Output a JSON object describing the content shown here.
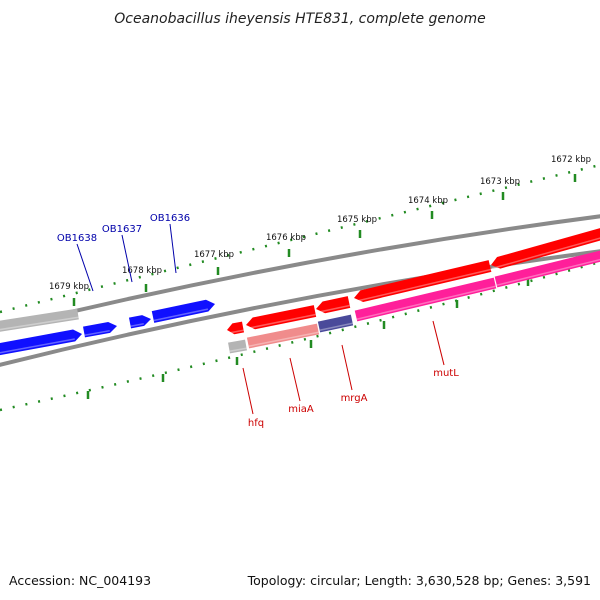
{
  "title": "Oceanobacillus iheyensis HTE831, complete genome",
  "footer": {
    "accession": "Accession: NC_004193",
    "summary": "Topology: circular; Length: 3,630,528 bp; Genes: 3,591"
  },
  "colors": {
    "backbone": "#808080",
    "ticks": "#228b22",
    "forward_label": "#0000aa",
    "reverse_label": "#cc0000"
  },
  "ticks": [
    {
      "label": "1672 kbp"
    },
    {
      "label": "1673 kbp"
    },
    {
      "label": "1674 kbp"
    },
    {
      "label": "1675 kbp"
    },
    {
      "label": "1676 kbp"
    },
    {
      "label": "1677 kbp"
    },
    {
      "label": "1678 kbp"
    },
    {
      "label": "1679 kbp"
    }
  ],
  "forward_genes": [
    {
      "name": "OB1636",
      "label": "OB1636",
      "color": "#1010ff"
    },
    {
      "name": "OB1637",
      "label": "OB1637",
      "color": "#1010ff"
    },
    {
      "name": "OB1638",
      "label": "OB1638",
      "color": "#1010ff"
    },
    {
      "name": "unlabeled-forward",
      "label": "",
      "color": "#1010ff"
    },
    {
      "name": "unlabeled-forward-gray",
      "label": "",
      "color": "#b4b4b4"
    }
  ],
  "reverse_genes": [
    {
      "name": "hfq",
      "label": "hfq",
      "color": "#ff0000"
    },
    {
      "name": "miaA",
      "label": "miaA",
      "color": "#ff0000"
    },
    {
      "name": "mrgA",
      "label": "mrgA",
      "color": "#ff0000"
    },
    {
      "name": "mutL",
      "label": "mutL",
      "color": "#ff0000"
    },
    {
      "name": "unlabeled-reverse-a",
      "label": "",
      "color": "#ff0000"
    },
    {
      "name": "unlabeled-reverse-b",
      "label": "",
      "color": "#ff0000"
    }
  ],
  "inner_genes": [
    {
      "name": "hfq-lower",
      "label": "",
      "color": "#b4b4b4"
    },
    {
      "name": "miaA-lower",
      "label": "",
      "color": "#f08c8c"
    },
    {
      "name": "mrgA-lower",
      "label": "",
      "color": "#4a4a9a"
    },
    {
      "name": "mutL-lower",
      "label": "",
      "color": "#ff1f9a"
    }
  ]
}
